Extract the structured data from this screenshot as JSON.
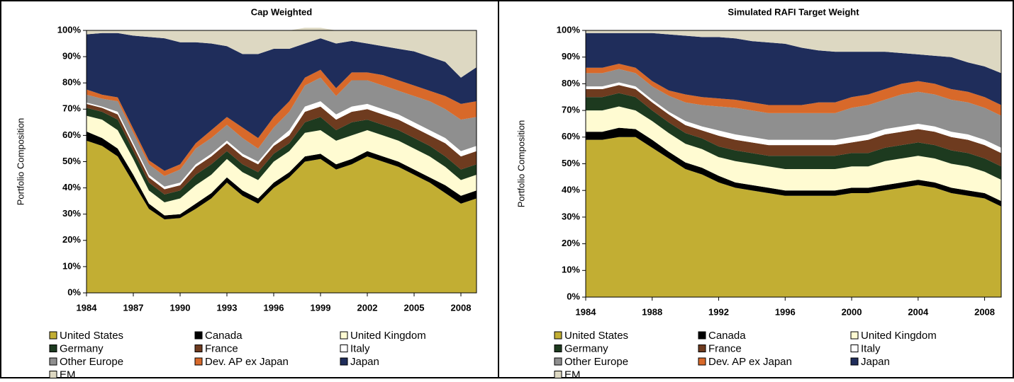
{
  "chart_data": [
    {
      "type": "area",
      "title": "Cap Weighted",
      "y_label": "Portfolio Composition",
      "x": [
        1984,
        1985,
        1986,
        1987,
        1988,
        1989,
        1990,
        1991,
        1992,
        1993,
        1994,
        1995,
        1996,
        1997,
        1998,
        1999,
        2000,
        2001,
        2002,
        2003,
        2004,
        2005,
        2006,
        2007,
        2008,
        2009
      ],
      "xlim": [
        1984,
        2009
      ],
      "xticks": [
        1984,
        1987,
        1990,
        1993,
        1996,
        1999,
        2002,
        2005,
        2008
      ],
      "ylim": [
        0,
        100
      ],
      "yticks": [
        {
          "value": 0,
          "label": "0%"
        },
        {
          "value": 10,
          "label": "10%"
        },
        {
          "value": 20,
          "label": "20%"
        },
        {
          "value": 30,
          "label": "30%"
        },
        {
          "value": 40,
          "label": "40%"
        },
        {
          "value": 50,
          "label": "50%"
        },
        {
          "value": 60,
          "label": "60%"
        },
        {
          "value": 70,
          "label": "70%"
        },
        {
          "value": 80,
          "label": "80%"
        },
        {
          "value": 90,
          "label": "90%"
        },
        {
          "value": 100,
          "label": "100%"
        }
      ],
      "series": [
        {
          "name": "United States",
          "color": "#c2ae33",
          "values": [
            58,
            56,
            52,
            42,
            32,
            28,
            28.5,
            32,
            36,
            42,
            37,
            34,
            40,
            44,
            50,
            51,
            47,
            49,
            52,
            50,
            48,
            45,
            42,
            38,
            34,
            36
          ]
        },
        {
          "name": "Canada",
          "color": "#000000",
          "values": [
            3.5,
            3,
            3,
            3,
            2,
            1.5,
            1.5,
            2,
            2,
            2,
            2,
            2,
            2,
            2,
            2,
            2,
            2,
            2,
            2,
            2,
            2,
            2,
            2,
            3,
            3,
            3
          ]
        },
        {
          "name": "United Kingdom",
          "color": "#fffbd2",
          "values": [
            6,
            7,
            7,
            6,
            5,
            5,
            6,
            7,
            7,
            7,
            7,
            7,
            8,
            8,
            9,
            9,
            9,
            9,
            8,
            8,
            8,
            8,
            8,
            7,
            6,
            6
          ]
        },
        {
          "name": "Germany",
          "color": "#1d3a1f",
          "values": [
            3,
            3,
            4,
            3,
            3,
            3,
            3,
            4,
            4,
            3,
            3,
            3,
            3,
            3,
            4,
            5,
            4,
            5,
            4,
            4,
            4,
            4,
            4,
            4,
            4,
            4
          ]
        },
        {
          "name": "France",
          "color": "#6e3b1f",
          "values": [
            1.5,
            1.5,
            2,
            2,
            2,
            2,
            2,
            3,
            3,
            3,
            3,
            3,
            3,
            3,
            4,
            4,
            4,
            4,
            4,
            4,
            4,
            4,
            4,
            5,
            5,
            5
          ]
        },
        {
          "name": "Italy",
          "color": "#ffffff",
          "values": [
            0.5,
            0.5,
            1,
            1,
            1,
            1,
            1,
            1,
            1,
            1,
            1,
            1,
            1,
            2,
            2,
            2,
            2,
            2,
            2,
            2,
            2,
            2,
            2,
            2,
            2,
            2
          ]
        },
        {
          "name": "Other Europe",
          "color": "#8f8f8f",
          "values": [
            3,
            3,
            4,
            4,
            4,
            4,
            5,
            6,
            6,
            6,
            6,
            5,
            6,
            7,
            8,
            9,
            7,
            10,
            9,
            9,
            9,
            10,
            11,
            11,
            12,
            11
          ]
        },
        {
          "name": "Dev. AP ex Japan",
          "color": "#d8692a",
          "values": [
            2,
            1.5,
            1.5,
            1.5,
            1.5,
            2,
            2,
            2,
            3,
            3,
            4,
            4,
            4,
            4,
            3,
            3,
            3,
            3,
            3,
            4,
            4,
            4,
            4,
            5,
            6,
            6
          ]
        },
        {
          "name": "Japan",
          "color": "#1f2d5b",
          "values": [
            21,
            23.5,
            24.5,
            35.5,
            47,
            50.5,
            46.5,
            38.5,
            33,
            27,
            28,
            32,
            26,
            20,
            13,
            12,
            17,
            12,
            11,
            11,
            12,
            13,
            13,
            13,
            10,
            13
          ]
        },
        {
          "name": "EM",
          "color": "#ddd8c2",
          "values": [
            1.5,
            1,
            1,
            2,
            2.5,
            3,
            4.5,
            4.5,
            5,
            6,
            9,
            9,
            7,
            7,
            6,
            4,
            5,
            4,
            5,
            6,
            7,
            8,
            10,
            12,
            18,
            14
          ]
        }
      ]
    },
    {
      "type": "area",
      "title": "Simulated RAFI Target Weight",
      "y_label": "Portfolio Composition",
      "x": [
        1984,
        1985,
        1986,
        1987,
        1988,
        1989,
        1990,
        1991,
        1992,
        1993,
        1994,
        1995,
        1996,
        1997,
        1998,
        1999,
        2000,
        2001,
        2002,
        2003,
        2004,
        2005,
        2006,
        2007,
        2008,
        2009
      ],
      "xlim": [
        1984,
        2009
      ],
      "xticks": [
        1984,
        1988,
        1992,
        1996,
        2000,
        2004,
        2008
      ],
      "ylim": [
        0,
        100
      ],
      "yticks": [
        {
          "value": 0,
          "label": "0%"
        },
        {
          "value": 10,
          "label": "10%"
        },
        {
          "value": 20,
          "label": "20%"
        },
        {
          "value": 30,
          "label": "30%"
        },
        {
          "value": 40,
          "label": "40%"
        },
        {
          "value": 50,
          "label": "50%"
        },
        {
          "value": 60,
          "label": "60%"
        },
        {
          "value": 70,
          "label": "70%"
        },
        {
          "value": 80,
          "label": "80%"
        },
        {
          "value": 90,
          "label": "90%"
        },
        {
          "value": 100,
          "label": "100%"
        }
      ],
      "series": [
        {
          "name": "United States",
          "color": "#c2ae33",
          "values": [
            59,
            59,
            60,
            60,
            56,
            52,
            48,
            46,
            43,
            41,
            40,
            39,
            38,
            38,
            38,
            38,
            39,
            39,
            40,
            41,
            42,
            41,
            39,
            38,
            37,
            34
          ]
        },
        {
          "name": "Canada",
          "color": "#000000",
          "values": [
            3,
            3,
            3.5,
            3,
            3,
            2.5,
            2.5,
            2.5,
            2.5,
            2,
            2,
            2,
            2,
            2,
            2,
            2,
            2,
            2,
            2,
            2,
            2,
            2,
            2,
            2,
            2,
            2
          ]
        },
        {
          "name": "United Kingdom",
          "color": "#fffbd2",
          "values": [
            8,
            8,
            8,
            7,
            7,
            7,
            7,
            7,
            7,
            8,
            8,
            8,
            8,
            8,
            8,
            8,
            8,
            8,
            9,
            9,
            9,
            9,
            9,
            9,
            8,
            8
          ]
        },
        {
          "name": "Germany",
          "color": "#1d3a1f",
          "values": [
            5,
            5,
            5,
            5,
            4,
            4,
            4,
            4,
            4,
            4,
            4,
            4,
            5,
            5,
            5,
            5,
            5,
            5,
            5,
            5,
            5,
            5,
            5,
            5,
            5,
            5
          ]
        },
        {
          "name": "France",
          "color": "#6e3b1f",
          "values": [
            3,
            3,
            3,
            3,
            3,
            3,
            3,
            3,
            4,
            4,
            4,
            4,
            4,
            4,
            4,
            4,
            4,
            5,
            5,
            5,
            5,
            5,
            5,
            5,
            5,
            5
          ]
        },
        {
          "name": "Italy",
          "color": "#ffffff",
          "values": [
            1,
            1,
            1,
            1,
            1,
            1,
            1.5,
            1.5,
            2,
            2,
            2,
            2,
            2,
            2,
            2,
            2,
            2,
            2,
            2,
            2,
            2,
            2,
            2,
            2,
            2,
            2
          ]
        },
        {
          "name": "Other Europe",
          "color": "#8f8f8f",
          "values": [
            5,
            5,
            5,
            5,
            5,
            6,
            7,
            8,
            9,
            10,
            10,
            10,
            10,
            10,
            10,
            10,
            11,
            11,
            11,
            12,
            12,
            12,
            12,
            12,
            12,
            12
          ]
        },
        {
          "name": "Dev. AP ex Japan",
          "color": "#d8692a",
          "values": [
            2,
            2,
            2,
            2,
            2,
            2,
            3,
            3,
            3,
            3,
            3,
            3,
            3,
            3,
            4,
            4,
            4,
            4,
            4,
            4,
            4,
            4,
            4,
            4,
            4,
            4
          ]
        },
        {
          "name": "Japan",
          "color": "#1f2d5b",
          "values": [
            13,
            13,
            11.5,
            13,
            18,
            21,
            22,
            22.5,
            23,
            23,
            23,
            23.5,
            23,
            21.5,
            19.5,
            19,
            17,
            16,
            14,
            11.5,
            10,
            10.5,
            12,
            11,
            11.5,
            12
          ]
        },
        {
          "name": "EM",
          "color": "#ddd8c2",
          "values": [
            1,
            1,
            1,
            1,
            1,
            1.5,
            2,
            2.5,
            2.5,
            3,
            4,
            4.5,
            5,
            6.5,
            7.5,
            8,
            8,
            8,
            8,
            8.5,
            9,
            9.5,
            10,
            12,
            13.5,
            16
          ]
        }
      ]
    }
  ]
}
